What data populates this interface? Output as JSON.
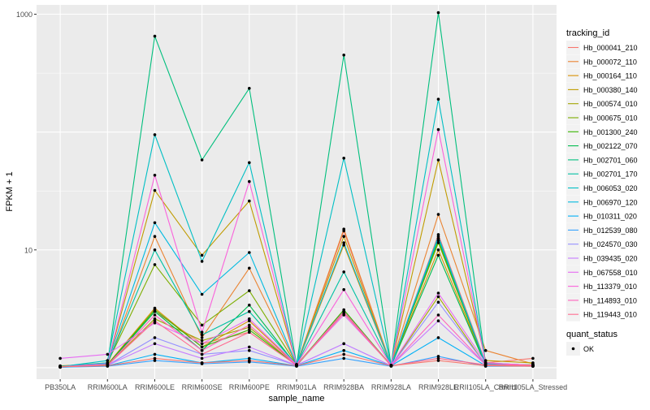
{
  "chart_data": {
    "type": "line",
    "title": "",
    "xlabel": "sample_name",
    "ylabel": "FPKM + 1",
    "y_scale": "log10",
    "ylim": [
      0.8,
      1200
    ],
    "y_ticks": [
      {
        "value": 10,
        "label": "10"
      },
      {
        "value": 1000,
        "label": "1000"
      }
    ],
    "categories": [
      "PB350LA",
      "RRIM600LA",
      "RRIM600LE",
      "RRIM600SE",
      "RRIM600PE",
      "RRIM901LA",
      "RRIM928BA",
      "RRIM928LA",
      "RRIM928LE",
      "RRII105LA_Control",
      "RRII105LA_Stressed"
    ],
    "legend_title": "tracking_id",
    "series": [
      {
        "name": "Hb_000041_210",
        "color": "#F8766D",
        "values": [
          1.02,
          1.05,
          3.0,
          1.6,
          2.0,
          1.05,
          14.5,
          1.04,
          13.5,
          1.1,
          1.2
        ]
      },
      {
        "name": "Hb_000072_110",
        "color": "#EA8331",
        "values": [
          1.03,
          1.06,
          13.0,
          1.8,
          7.0,
          1.06,
          15.0,
          1.05,
          20.0,
          1.4,
          1.08
        ]
      },
      {
        "name": "Hb_000164_110",
        "color": "#D89000",
        "values": [
          1.02,
          1.07,
          3.2,
          1.5,
          2.5,
          1.05,
          11.0,
          1.04,
          10.0,
          1.06,
          1.05
        ]
      },
      {
        "name": "Hb_000380_140",
        "color": "#C09B00",
        "values": [
          1.04,
          1.08,
          32.0,
          9.0,
          26.0,
          1.07,
          13.0,
          1.04,
          58.0,
          1.15,
          1.1
        ]
      },
      {
        "name": "Hb_000574_010",
        "color": "#A3A500",
        "values": [
          1.02,
          1.05,
          2.6,
          1.7,
          2.2,
          1.05,
          3.0,
          1.04,
          4.0,
          1.05,
          1.05
        ]
      },
      {
        "name": "Hb_000675_010",
        "color": "#7CAE00",
        "values": [
          1.03,
          1.1,
          7.5,
          2.3,
          4.5,
          1.06,
          3.0,
          1.05,
          11.5,
          1.07,
          1.04
        ]
      },
      {
        "name": "Hb_001300_240",
        "color": "#39B600",
        "values": [
          1.02,
          1.06,
          3.1,
          1.5,
          2.1,
          1.05,
          3.1,
          1.04,
          12.0,
          1.06,
          1.06
        ]
      },
      {
        "name": "Hb_002122_070",
        "color": "#00BB4E",
        "values": [
          1.01,
          1.05,
          3.0,
          1.4,
          3.4,
          1.04,
          3.0,
          1.04,
          9.0,
          1.05,
          1.04
        ]
      },
      {
        "name": "Hb_002701_060",
        "color": "#00BF7D",
        "values": [
          1.03,
          1.07,
          650.0,
          58.0,
          235.0,
          1.06,
          450.0,
          1.05,
          1030.0,
          1.08,
          1.05
        ]
      },
      {
        "name": "Hb_002701_170",
        "color": "#00C1A3",
        "values": [
          1.02,
          1.09,
          10.0,
          1.9,
          3.0,
          1.06,
          6.5,
          1.05,
          12.5,
          1.08,
          1.04
        ]
      },
      {
        "name": "Hb_006053_020",
        "color": "#00BFC4",
        "values": [
          1.02,
          1.15,
          95.0,
          8.0,
          55.0,
          1.06,
          60.0,
          1.05,
          190.0,
          1.1,
          1.05
        ]
      },
      {
        "name": "Hb_006970_120",
        "color": "#00BAE0",
        "values": [
          1.02,
          1.1,
          17.0,
          4.2,
          9.5,
          1.06,
          11.5,
          1.05,
          13.0,
          1.07,
          1.04
        ]
      },
      {
        "name": "Hb_010311_020",
        "color": "#00B0F6",
        "values": [
          1.01,
          1.04,
          1.3,
          1.1,
          1.2,
          1.04,
          1.4,
          1.04,
          1.8,
          1.04,
          1.03
        ]
      },
      {
        "name": "Hb_012539_080",
        "color": "#35A2FF",
        "values": [
          1.01,
          1.03,
          1.15,
          1.08,
          1.12,
          1.03,
          1.2,
          1.03,
          1.25,
          1.03,
          1.03
        ]
      },
      {
        "name": "Hb_024570_030",
        "color": "#9590FF",
        "values": [
          1.02,
          1.05,
          1.8,
          1.3,
          1.4,
          1.05,
          1.6,
          1.04,
          3.6,
          1.06,
          1.05
        ]
      },
      {
        "name": "Hb_039435_020",
        "color": "#C77CFF",
        "values": [
          1.02,
          1.05,
          1.6,
          1.2,
          1.5,
          1.05,
          1.6,
          1.04,
          2.5,
          1.06,
          1.05
        ]
      },
      {
        "name": "Hb_067558_010",
        "color": "#E76BF3",
        "values": [
          1.2,
          1.3,
          2.4,
          1.6,
          2.6,
          1.06,
          2.8,
          1.05,
          4.3,
          1.1,
          1.05
        ]
      },
      {
        "name": "Hb_113379_010",
        "color": "#FA62DB",
        "values": [
          1.02,
          1.08,
          43.0,
          2.0,
          38.0,
          1.06,
          4.6,
          1.05,
          105.0,
          1.1,
          1.05
        ]
      },
      {
        "name": "Hb_114893_010",
        "color": "#FF62BC",
        "values": [
          1.02,
          1.05,
          2.8,
          1.4,
          2.3,
          1.05,
          3.0,
          1.04,
          2.8,
          1.06,
          1.05
        ]
      },
      {
        "name": "Hb_119443_010",
        "color": "#FF6C91",
        "values": [
          1.02,
          1.05,
          2.5,
          1.3,
          2.0,
          1.05,
          2.9,
          1.04,
          1.2,
          1.06,
          1.05
        ]
      },
      {
        "name": "",
        "color": "#F8766D",
        "values": [
          1.02,
          1.04,
          1.2,
          1.1,
          1.15,
          1.04,
          1.3,
          1.04,
          1.15,
          1.04,
          1.03
        ]
      }
    ],
    "quant_legend": {
      "title": "quant_status",
      "items": [
        {
          "label": "OK"
        }
      ]
    },
    "grid": true,
    "legend_position": "right",
    "panel_background": "#EBEBEB",
    "grid_color": "#FFFFFF"
  }
}
